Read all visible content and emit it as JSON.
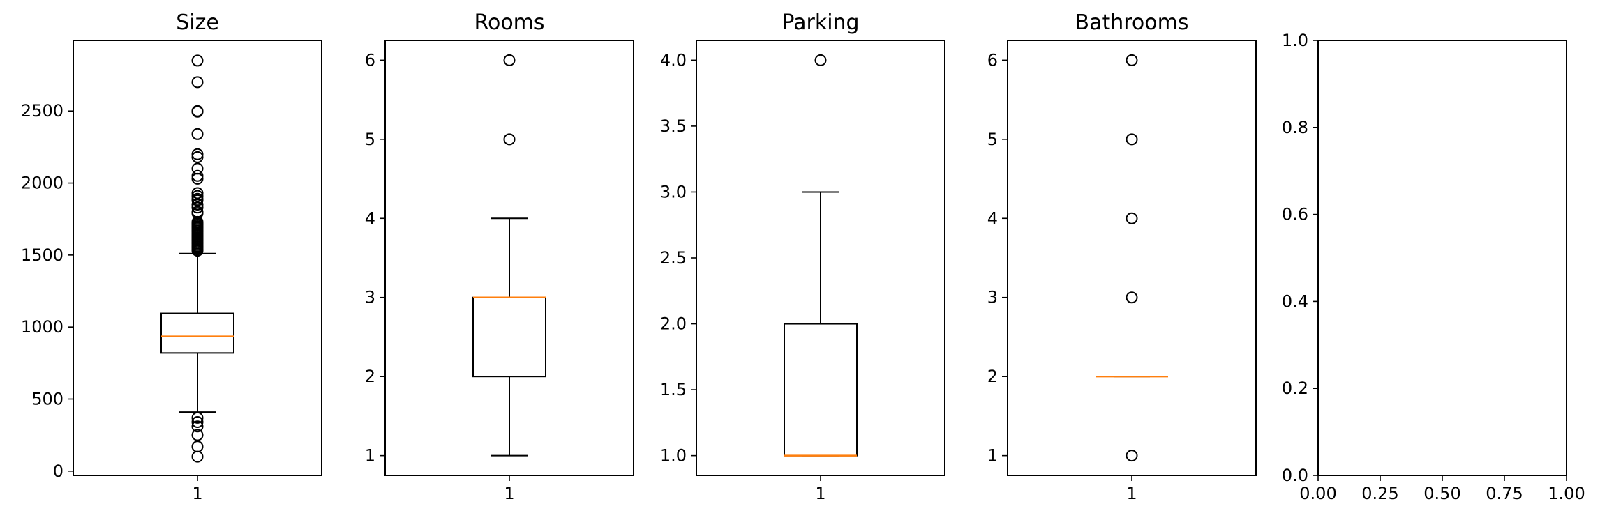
{
  "chart_data": [
    {
      "type": "box",
      "title": "Size",
      "categories": [
        "1"
      ],
      "ylim": [
        -30,
        2990
      ],
      "yticks": [
        0,
        500,
        1000,
        1500,
        2000,
        2500
      ],
      "box": {
        "whisker_low": 410,
        "q1": 820,
        "median": 935,
        "q3": 1095,
        "whisker_high": 1510
      },
      "outliers": [
        2850,
        2700,
        2500,
        2495,
        2340,
        2200,
        2180,
        2100,
        2050,
        2030,
        1930,
        1910,
        1890,
        1880,
        1850,
        1830,
        1800,
        1790,
        1730,
        1720,
        1710,
        1700,
        1690,
        1680,
        1670,
        1660,
        1650,
        1640,
        1630,
        1620,
        1610,
        1600,
        1590,
        1580,
        1570,
        1560,
        1550,
        1540,
        1530,
        370,
        340,
        310,
        250,
        170,
        100
      ]
    },
    {
      "type": "box",
      "title": "Rooms",
      "categories": [
        "1"
      ],
      "ylim": [
        0.75,
        6.25
      ],
      "yticks": [
        1,
        2,
        3,
        4,
        5,
        6
      ],
      "box": {
        "whisker_low": 1,
        "q1": 2,
        "median": 3,
        "q3": 3,
        "whisker_high": 4
      },
      "outliers": [
        5,
        6
      ]
    },
    {
      "type": "box",
      "title": "Parking",
      "categories": [
        "1"
      ],
      "ylim": [
        0.85,
        4.15
      ],
      "yticks": [
        1.0,
        1.5,
        2.0,
        2.5,
        3.0,
        3.5,
        4.0
      ],
      "box": {
        "whisker_low": 1,
        "q1": 1,
        "median": 1,
        "q3": 2,
        "whisker_high": 3
      },
      "outliers": [
        4
      ]
    },
    {
      "type": "box",
      "title": "Bathrooms",
      "categories": [
        "1"
      ],
      "ylim": [
        0.75,
        6.25
      ],
      "yticks": [
        1,
        2,
        3,
        4,
        5,
        6
      ],
      "box": {
        "whisker_low": 2,
        "q1": 2,
        "median": 2,
        "q3": 2,
        "whisker_high": 2
      },
      "outliers": [
        1,
        3,
        4,
        5,
        6
      ]
    },
    {
      "type": "empty",
      "title": "",
      "xlim": [
        0,
        1
      ],
      "ylim": [
        0,
        1
      ],
      "xticks": [
        0.0,
        0.25,
        0.5,
        0.75,
        1.0
      ],
      "yticks": [
        0.0,
        0.2,
        0.4,
        0.6,
        0.8,
        1.0
      ]
    }
  ],
  "colors": {
    "median": "#ff7f0e",
    "box": "#000000"
  }
}
